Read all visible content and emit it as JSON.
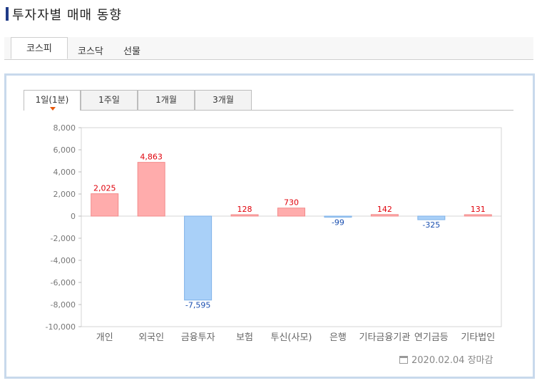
{
  "page_title": "투자자별 매매 동향",
  "market_tabs": [
    {
      "label": "코스피",
      "active": true
    },
    {
      "label": "코스닥",
      "active": false
    },
    {
      "label": "선물",
      "active": false
    }
  ],
  "period_tabs": [
    {
      "label": "1일(1분)",
      "active": true
    },
    {
      "label": "1주일",
      "active": false
    },
    {
      "label": "1개월",
      "active": false
    },
    {
      "label": "3개월",
      "active": false
    }
  ],
  "footer_text": "2020.02.04 장마감",
  "colors": {
    "positive_fill": "#ffacac",
    "positive_stroke": "#f28b8b",
    "positive_label": "#e0000a",
    "negative_fill": "#a9d0f8",
    "negative_stroke": "#7fb2e8",
    "negative_label": "#1a4fb0",
    "title_bar": "#1f3b87",
    "panel_border": "#c8d9ec"
  },
  "chart_data": {
    "type": "bar",
    "categories": [
      "개인",
      "외국인",
      "금융투자",
      "보험",
      "투신(사모)",
      "은행",
      "기타금융기관",
      "연기금등",
      "기타법인"
    ],
    "values": [
      2025,
      4863,
      -7595,
      128,
      730,
      -99,
      142,
      -325,
      131
    ],
    "value_labels": [
      "2,025",
      "4,863",
      "-7,595",
      "128",
      "730",
      "-99",
      "142",
      "-325",
      "131"
    ],
    "ylim": [
      -10000,
      8000
    ],
    "yticks": [
      8000,
      6000,
      4000,
      2000,
      0,
      -2000,
      -4000,
      -6000,
      -8000,
      -10000
    ],
    "ytick_labels": [
      "8,000",
      "6,000",
      "4,000",
      "2,000",
      "0",
      "-2,000",
      "-4,000",
      "-6,000",
      "-8,000",
      "-10,000"
    ],
    "grid": false,
    "title": "",
    "xlabel": "",
    "ylabel": ""
  }
}
